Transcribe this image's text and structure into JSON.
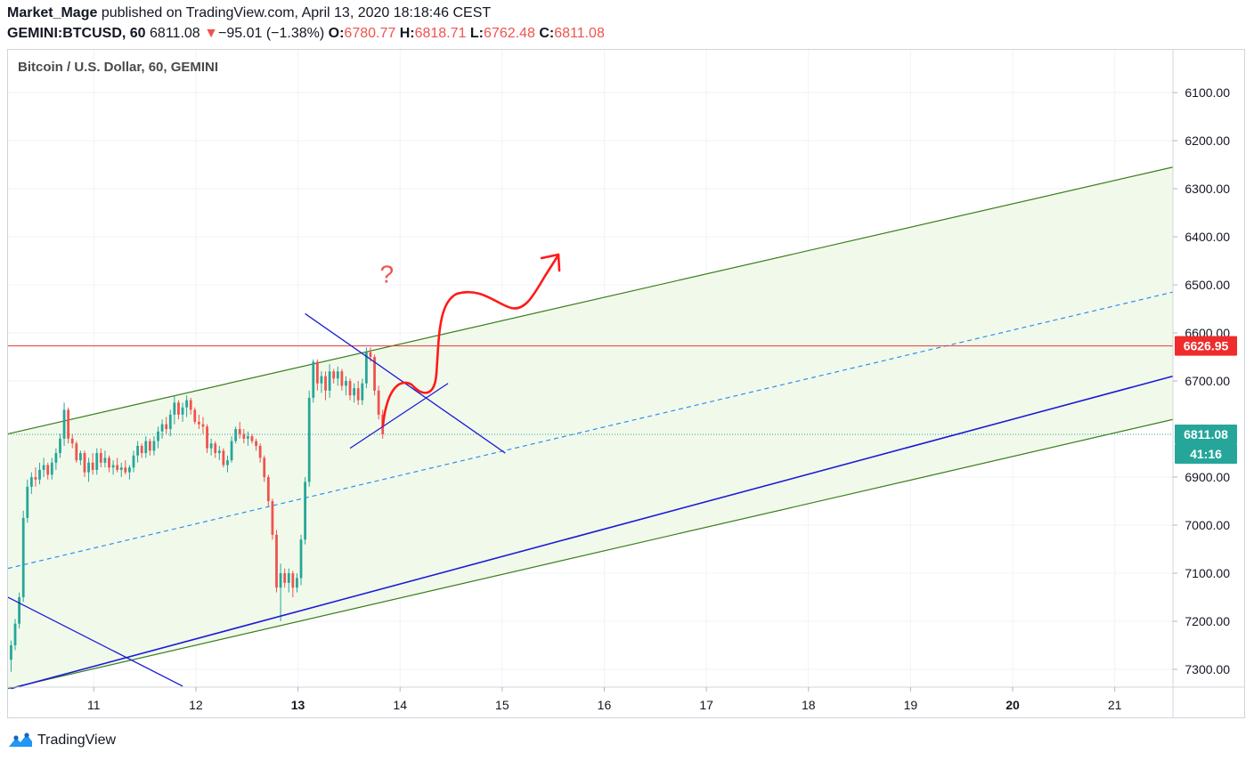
{
  "header": {
    "author": "Market_Mage",
    "published": " published on TradingView.com, April 13, 2020 18:18:46 CEST",
    "symbol": "GEMINI:BTCUSD, 60",
    "last": "6811.08",
    "change_arrow": "▼",
    "change": "−95.01 (−1.38%)",
    "open_label": "O:",
    "open": "6780.77",
    "high_label": "H:",
    "high": "6818.71",
    "low_label": "L:",
    "low": "6762.48",
    "close_label": "C:",
    "close": "6811.08"
  },
  "legend": {
    "title": "Bitcoin / U.S. Dollar, 60, GEMINI"
  },
  "footer": {
    "brand": "TradingView",
    "logo_icon": "tradingview-logo-icon"
  },
  "colors": {
    "up": "#26a69a",
    "down": "#ef5350",
    "channel": "#3a7d1e",
    "channel_fill": "#f1faea",
    "blue_line": "#1b1bd6",
    "dashed": "#2e8ff0",
    "red_line": "#e53935",
    "axis_text": "#131722"
  },
  "chart_data": {
    "type": "candlestick",
    "title": "Bitcoin / U.S. Dollar, 60, GEMINI",
    "x_axis": {
      "ticks": [
        {
          "t": 11,
          "label": "11",
          "bold": false
        },
        {
          "t": 12,
          "label": "12",
          "bold": false
        },
        {
          "t": 13,
          "label": "13",
          "bold": true
        },
        {
          "t": 14,
          "label": "14",
          "bold": false
        },
        {
          "t": 15,
          "label": "15",
          "bold": false
        },
        {
          "t": 16,
          "label": "16",
          "bold": false
        },
        {
          "t": 17,
          "label": "17",
          "bold": false
        },
        {
          "t": 18,
          "label": "18",
          "bold": false
        },
        {
          "t": 19,
          "label": "19",
          "bold": false
        },
        {
          "t": 20,
          "label": "20",
          "bold": true
        },
        {
          "t": 21,
          "label": "21",
          "bold": false
        }
      ],
      "range": [
        10.16,
        21.57
      ]
    },
    "y_axis": {
      "ticks": [
        "6100.00",
        "6200.00",
        "6300.00",
        "6400.00",
        "6500.00",
        "6600.00",
        "6700.00",
        "6900.00",
        "7000.00",
        "7100.00",
        "7200.00",
        "7300.00"
      ],
      "range": [
        6011,
        7337
      ],
      "inverted": true
    },
    "price_labels": [
      {
        "text": "6626.95",
        "value": 6626.95,
        "color": "#ef2b2b"
      },
      {
        "text": "6811.08",
        "value": 6811.08,
        "color": "#26a69a"
      },
      {
        "text": "41:16",
        "color": "#26a69a"
      }
    ],
    "candles": [
      {
        "t": 10.19,
        "o": 7280,
        "h": 7305,
        "l": 7240,
        "c": 7250
      },
      {
        "t": 10.23,
        "o": 7250,
        "h": 7260,
        "l": 7195,
        "c": 7205
      },
      {
        "t": 10.27,
        "o": 7205,
        "h": 7215,
        "l": 7140,
        "c": 7150
      },
      {
        "t": 10.31,
        "o": 7150,
        "h": 7160,
        "l": 6970,
        "c": 6985
      },
      {
        "t": 10.35,
        "o": 6985,
        "h": 6995,
        "l": 6905,
        "c": 6920
      },
      {
        "t": 10.39,
        "o": 6920,
        "h": 6935,
        "l": 6890,
        "c": 6900
      },
      {
        "t": 10.43,
        "o": 6900,
        "h": 6920,
        "l": 6880,
        "c": 6905
      },
      {
        "t": 10.47,
        "o": 6905,
        "h": 6915,
        "l": 6870,
        "c": 6885
      },
      {
        "t": 10.51,
        "o": 6885,
        "h": 6900,
        "l": 6860,
        "c": 6875
      },
      {
        "t": 10.55,
        "o": 6875,
        "h": 6905,
        "l": 6870,
        "c": 6895
      },
      {
        "t": 10.59,
        "o": 6895,
        "h": 6905,
        "l": 6860,
        "c": 6870
      },
      {
        "t": 10.63,
        "o": 6870,
        "h": 6885,
        "l": 6840,
        "c": 6850
      },
      {
        "t": 10.67,
        "o": 6850,
        "h": 6860,
        "l": 6810,
        "c": 6820
      },
      {
        "t": 10.71,
        "o": 6820,
        "h": 6835,
        "l": 6745,
        "c": 6760
      },
      {
        "t": 10.75,
        "o": 6760,
        "h": 6830,
        "l": 6755,
        "c": 6820
      },
      {
        "t": 10.79,
        "o": 6820,
        "h": 6840,
        "l": 6810,
        "c": 6830
      },
      {
        "t": 10.83,
        "o": 6830,
        "h": 6870,
        "l": 6825,
        "c": 6865
      },
      {
        "t": 10.87,
        "o": 6865,
        "h": 6875,
        "l": 6845,
        "c": 6850
      },
      {
        "t": 10.91,
        "o": 6850,
        "h": 6900,
        "l": 6845,
        "c": 6890
      },
      {
        "t": 10.95,
        "o": 6890,
        "h": 6910,
        "l": 6860,
        "c": 6870
      },
      {
        "t": 10.99,
        "o": 6870,
        "h": 6895,
        "l": 6850,
        "c": 6885
      },
      {
        "t": 11.03,
        "o": 6885,
        "h": 6895,
        "l": 6840,
        "c": 6850
      },
      {
        "t": 11.07,
        "o": 6850,
        "h": 6880,
        "l": 6840,
        "c": 6870
      },
      {
        "t": 11.11,
        "o": 6870,
        "h": 6880,
        "l": 6845,
        "c": 6860
      },
      {
        "t": 11.15,
        "o": 6860,
        "h": 6890,
        "l": 6855,
        "c": 6880
      },
      {
        "t": 11.19,
        "o": 6880,
        "h": 6895,
        "l": 6865,
        "c": 6875
      },
      {
        "t": 11.23,
        "o": 6875,
        "h": 6890,
        "l": 6860,
        "c": 6885
      },
      {
        "t": 11.27,
        "o": 6885,
        "h": 6900,
        "l": 6870,
        "c": 6880
      },
      {
        "t": 11.31,
        "o": 6880,
        "h": 6895,
        "l": 6865,
        "c": 6890
      },
      {
        "t": 11.35,
        "o": 6890,
        "h": 6905,
        "l": 6875,
        "c": 6880
      },
      {
        "t": 11.39,
        "o": 6880,
        "h": 6890,
        "l": 6845,
        "c": 6855
      },
      {
        "t": 11.43,
        "o": 6855,
        "h": 6870,
        "l": 6825,
        "c": 6835
      },
      {
        "t": 11.47,
        "o": 6835,
        "h": 6860,
        "l": 6830,
        "c": 6850
      },
      {
        "t": 11.51,
        "o": 6850,
        "h": 6860,
        "l": 6815,
        "c": 6825
      },
      {
        "t": 11.55,
        "o": 6825,
        "h": 6855,
        "l": 6820,
        "c": 6845
      },
      {
        "t": 11.59,
        "o": 6845,
        "h": 6855,
        "l": 6815,
        "c": 6825
      },
      {
        "t": 11.63,
        "o": 6825,
        "h": 6840,
        "l": 6795,
        "c": 6805
      },
      {
        "t": 11.67,
        "o": 6805,
        "h": 6820,
        "l": 6780,
        "c": 6790
      },
      {
        "t": 11.71,
        "o": 6790,
        "h": 6810,
        "l": 6775,
        "c": 6800
      },
      {
        "t": 11.75,
        "o": 6800,
        "h": 6815,
        "l": 6760,
        "c": 6770
      },
      {
        "t": 11.79,
        "o": 6770,
        "h": 6790,
        "l": 6730,
        "c": 6745
      },
      {
        "t": 11.83,
        "o": 6745,
        "h": 6780,
        "l": 6740,
        "c": 6770
      },
      {
        "t": 11.87,
        "o": 6770,
        "h": 6785,
        "l": 6745,
        "c": 6755
      },
      {
        "t": 11.91,
        "o": 6755,
        "h": 6775,
        "l": 6730,
        "c": 6740
      },
      {
        "t": 11.95,
        "o": 6740,
        "h": 6770,
        "l": 6735,
        "c": 6760
      },
      {
        "t": 11.99,
        "o": 6760,
        "h": 6790,
        "l": 6755,
        "c": 6785
      },
      {
        "t": 12.03,
        "o": 6785,
        "h": 6800,
        "l": 6770,
        "c": 6790
      },
      {
        "t": 12.07,
        "o": 6790,
        "h": 6810,
        "l": 6775,
        "c": 6795
      },
      {
        "t": 12.11,
        "o": 6795,
        "h": 6850,
        "l": 6790,
        "c": 6840
      },
      {
        "t": 12.15,
        "o": 6840,
        "h": 6855,
        "l": 6820,
        "c": 6830
      },
      {
        "t": 12.19,
        "o": 6830,
        "h": 6860,
        "l": 6825,
        "c": 6850
      },
      {
        "t": 12.23,
        "o": 6850,
        "h": 6865,
        "l": 6835,
        "c": 6845
      },
      {
        "t": 12.27,
        "o": 6845,
        "h": 6880,
        "l": 6840,
        "c": 6875
      },
      {
        "t": 12.31,
        "o": 6875,
        "h": 6890,
        "l": 6855,
        "c": 6865
      },
      {
        "t": 12.35,
        "o": 6865,
        "h": 6870,
        "l": 6815,
        "c": 6825
      },
      {
        "t": 12.39,
        "o": 6825,
        "h": 6830,
        "l": 6795,
        "c": 6800
      },
      {
        "t": 12.43,
        "o": 6800,
        "h": 6820,
        "l": 6785,
        "c": 6810
      },
      {
        "t": 12.47,
        "o": 6810,
        "h": 6830,
        "l": 6800,
        "c": 6820
      },
      {
        "t": 12.51,
        "o": 6820,
        "h": 6835,
        "l": 6805,
        "c": 6815
      },
      {
        "t": 12.55,
        "o": 6815,
        "h": 6830,
        "l": 6810,
        "c": 6825
      },
      {
        "t": 12.59,
        "o": 6825,
        "h": 6845,
        "l": 6820,
        "c": 6835
      },
      {
        "t": 12.63,
        "o": 6835,
        "h": 6870,
        "l": 6830,
        "c": 6860
      },
      {
        "t": 12.67,
        "o": 6860,
        "h": 6910,
        "l": 6855,
        "c": 6900
      },
      {
        "t": 12.71,
        "o": 6900,
        "h": 6960,
        "l": 6895,
        "c": 6950
      },
      {
        "t": 12.75,
        "o": 6950,
        "h": 7030,
        "l": 6945,
        "c": 7020
      },
      {
        "t": 12.79,
        "o": 7020,
        "h": 7140,
        "l": 7010,
        "c": 7130
      },
      {
        "t": 12.83,
        "o": 7130,
        "h": 7200,
        "l": 7080,
        "c": 7100
      },
      {
        "t": 12.87,
        "o": 7100,
        "h": 7130,
        "l": 7090,
        "c": 7120
      },
      {
        "t": 12.91,
        "o": 7120,
        "h": 7140,
        "l": 7090,
        "c": 7100
      },
      {
        "t": 12.95,
        "o": 7100,
        "h": 7150,
        "l": 7095,
        "c": 7130
      },
      {
        "t": 12.99,
        "o": 7130,
        "h": 7140,
        "l": 7100,
        "c": 7110
      },
      {
        "t": 13.03,
        "o": 7110,
        "h": 7125,
        "l": 7020,
        "c": 7030
      },
      {
        "t": 13.07,
        "o": 7030,
        "h": 7040,
        "l": 6900,
        "c": 6910
      },
      {
        "t": 13.11,
        "o": 6910,
        "h": 6920,
        "l": 6720,
        "c": 6735
      },
      {
        "t": 13.15,
        "o": 6735,
        "h": 6745,
        "l": 6655,
        "c": 6660
      },
      {
        "t": 13.19,
        "o": 6660,
        "h": 6720,
        "l": 6655,
        "c": 6705
      },
      {
        "t": 13.23,
        "o": 6705,
        "h": 6725,
        "l": 6680,
        "c": 6690
      },
      {
        "t": 13.27,
        "o": 6690,
        "h": 6740,
        "l": 6680,
        "c": 6720
      },
      {
        "t": 13.31,
        "o": 6720,
        "h": 6735,
        "l": 6665,
        "c": 6680
      },
      {
        "t": 13.35,
        "o": 6680,
        "h": 6705,
        "l": 6675,
        "c": 6695
      },
      {
        "t": 13.39,
        "o": 6695,
        "h": 6710,
        "l": 6670,
        "c": 6680
      },
      {
        "t": 13.43,
        "o": 6680,
        "h": 6720,
        "l": 6675,
        "c": 6710
      },
      {
        "t": 13.47,
        "o": 6710,
        "h": 6730,
        "l": 6690,
        "c": 6700
      },
      {
        "t": 13.51,
        "o": 6700,
        "h": 6740,
        "l": 6695,
        "c": 6730
      },
      {
        "t": 13.55,
        "o": 6730,
        "h": 6745,
        "l": 6705,
        "c": 6715
      },
      {
        "t": 13.59,
        "o": 6715,
        "h": 6750,
        "l": 6700,
        "c": 6740
      },
      {
        "t": 13.63,
        "o": 6740,
        "h": 6750,
        "l": 6695,
        "c": 6705
      },
      {
        "t": 13.67,
        "o": 6705,
        "h": 6715,
        "l": 6630,
        "c": 6640
      },
      {
        "t": 13.71,
        "o": 6640,
        "h": 6660,
        "l": 6630,
        "c": 6650
      },
      {
        "t": 13.75,
        "o": 6650,
        "h": 6730,
        "l": 6645,
        "c": 6720
      },
      {
        "t": 13.79,
        "o": 6720,
        "h": 6780,
        "l": 6710,
        "c": 6770
      },
      {
        "t": 13.83,
        "o": 6770,
        "h": 6820,
        "l": 6760,
        "c": 6811
      }
    ],
    "drawings": {
      "channel_upper": [
        [
          10.16,
          6810
        ],
        [
          21.57,
          6255
        ]
      ],
      "channel_lower": [
        [
          10.16,
          7340
        ],
        [
          21.57,
          6780
        ]
      ],
      "channel_mid_dashed": [
        [
          10.16,
          7090
        ],
        [
          21.57,
          6515
        ]
      ],
      "blue_support": [
        [
          10.19,
          7340
        ],
        [
          21.57,
          6690
        ]
      ],
      "blue_down_line": [
        [
          10.16,
          7150
        ],
        [
          11.87,
          7335
        ]
      ],
      "triangle_upper": [
        [
          13.07,
          6560
        ],
        [
          15.03,
          6850
        ]
      ],
      "triangle_lower": [
        [
          13.51,
          6840
        ],
        [
          14.47,
          6705
        ]
      ],
      "horizontal_red": 6626.95,
      "horizontal_dotted": 6811.08
    },
    "annotation": {
      "text": "?",
      "t": 13.87,
      "v": 6495
    }
  }
}
